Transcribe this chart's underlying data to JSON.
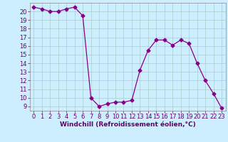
{
  "x": [
    0,
    1,
    2,
    3,
    4,
    5,
    6,
    7,
    8,
    9,
    10,
    11,
    12,
    13,
    14,
    15,
    16,
    17,
    18,
    19,
    20,
    21,
    22,
    23
  ],
  "y": [
    20.5,
    20.3,
    20.0,
    20.0,
    20.3,
    20.5,
    19.5,
    10.0,
    9.0,
    9.3,
    9.5,
    9.5,
    9.7,
    13.2,
    15.5,
    16.7,
    16.7,
    16.1,
    16.7,
    16.3,
    14.0,
    12.0,
    10.5,
    8.8
  ],
  "line_color": "#880088",
  "marker": "D",
  "marker_size": 2.5,
  "bg_color": "#cceeff",
  "grid_color": "#aacccc",
  "xlabel": "Windchill (Refroidissement éolien,°C)",
  "ylim": [
    8.5,
    21.0
  ],
  "yticks": [
    9,
    10,
    11,
    12,
    13,
    14,
    15,
    16,
    17,
    18,
    19,
    20
  ],
  "xticks": [
    0,
    1,
    2,
    3,
    4,
    5,
    6,
    7,
    8,
    9,
    10,
    11,
    12,
    13,
    14,
    15,
    16,
    17,
    18,
    19,
    20,
    21,
    22,
    23
  ],
  "xlabel_fontsize": 6.5,
  "tick_fontsize": 6.0
}
